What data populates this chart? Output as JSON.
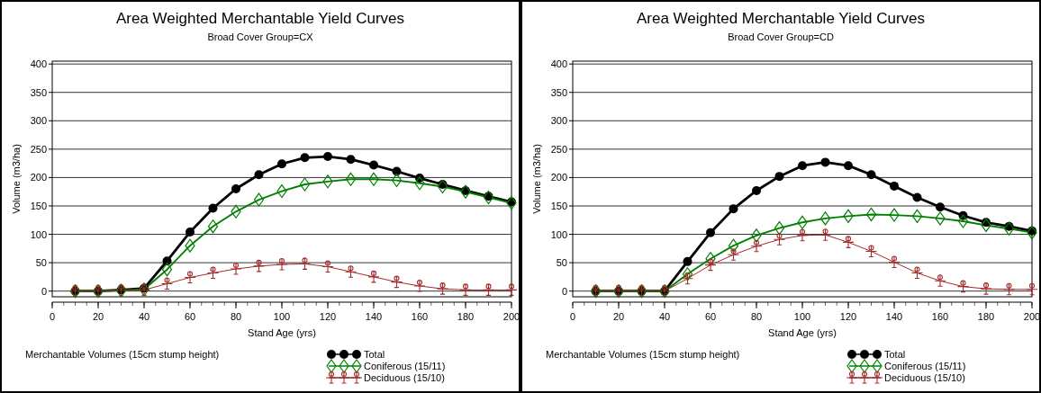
{
  "chart_data": [
    {
      "type": "line",
      "title": "Area Weighted Merchantable Yield Curves",
      "subtitle": "Broad Cover Group=CX",
      "xlabel": "Stand Age (yrs)",
      "ylabel": "Volume (m3/ha)",
      "legend_title": "Merchantable Volumes (15cm stump height)",
      "x": [
        10,
        20,
        30,
        40,
        50,
        60,
        70,
        80,
        90,
        100,
        110,
        120,
        130,
        140,
        150,
        160,
        170,
        180,
        190,
        200
      ],
      "series": [
        {
          "name": "Total",
          "color": "#000000",
          "marker": "circle",
          "values": [
            0,
            0,
            2,
            5,
            53,
            104,
            146,
            180,
            205,
            224,
            235,
            237,
            232,
            222,
            211,
            199,
            188,
            177,
            167,
            157
          ]
        },
        {
          "name": "Coniferous (15/11)",
          "color": "#008000",
          "marker": "diamond",
          "values": [
            0,
            0,
            1,
            3,
            38,
            80,
            114,
            140,
            161,
            176,
            188,
            193,
            197,
            197,
            195,
            190,
            184,
            175,
            165,
            155
          ]
        },
        {
          "name": "Deciduous (15/10)",
          "color": "#a52a2a",
          "marker": "cross",
          "values": [
            0,
            0,
            1,
            2,
            13,
            24,
            32,
            39,
            44,
            47,
            48,
            43,
            34,
            25,
            16,
            9,
            4,
            2,
            2,
            2
          ]
        }
      ],
      "xlim": [
        0,
        200
      ],
      "xticks": [
        0,
        20,
        40,
        60,
        80,
        100,
        120,
        140,
        160,
        180,
        200
      ],
      "ylim": [
        -10,
        405
      ],
      "yticks": [
        0,
        50,
        100,
        150,
        200,
        250,
        300,
        350,
        400
      ],
      "grid": "y",
      "legend": "bottom"
    },
    {
      "type": "line",
      "title": "Area Weighted Merchantable Yield Curves",
      "subtitle": "Broad Cover Group=CD",
      "xlabel": "Stand Age (yrs)",
      "ylabel": "Volume (m3/ha)",
      "legend_title": "Merchantable Volumes (15cm stump height)",
      "x": [
        10,
        20,
        30,
        40,
        50,
        60,
        70,
        80,
        90,
        100,
        110,
        120,
        130,
        140,
        150,
        160,
        170,
        180,
        190,
        200
      ],
      "series": [
        {
          "name": "Total",
          "color": "#000000",
          "marker": "circle",
          "values": [
            0,
            0,
            0,
            0,
            52,
            103,
            145,
            177,
            202,
            221,
            227,
            221,
            205,
            185,
            165,
            148,
            133,
            121,
            114,
            106
          ]
        },
        {
          "name": "Coniferous (15/11)",
          "color": "#008000",
          "marker": "diamond",
          "values": [
            0,
            0,
            0,
            0,
            30,
            57,
            80,
            98,
            111,
            121,
            128,
            132,
            135,
            134,
            132,
            128,
            123,
            116,
            110,
            103
          ]
        },
        {
          "name": "Deciduous (15/10)",
          "color": "#a52a2a",
          "marker": "cross",
          "values": [
            0,
            0,
            0,
            0,
            22,
            46,
            64,
            79,
            91,
            98,
            99,
            86,
            70,
            51,
            32,
            18,
            8,
            4,
            3,
            3
          ]
        }
      ],
      "xlim": [
        0,
        200
      ],
      "xticks": [
        0,
        20,
        40,
        60,
        80,
        100,
        120,
        140,
        160,
        180,
        200
      ],
      "ylim": [
        -10,
        405
      ],
      "yticks": [
        0,
        50,
        100,
        150,
        200,
        250,
        300,
        350,
        400
      ],
      "grid": "y",
      "legend": "bottom"
    }
  ]
}
